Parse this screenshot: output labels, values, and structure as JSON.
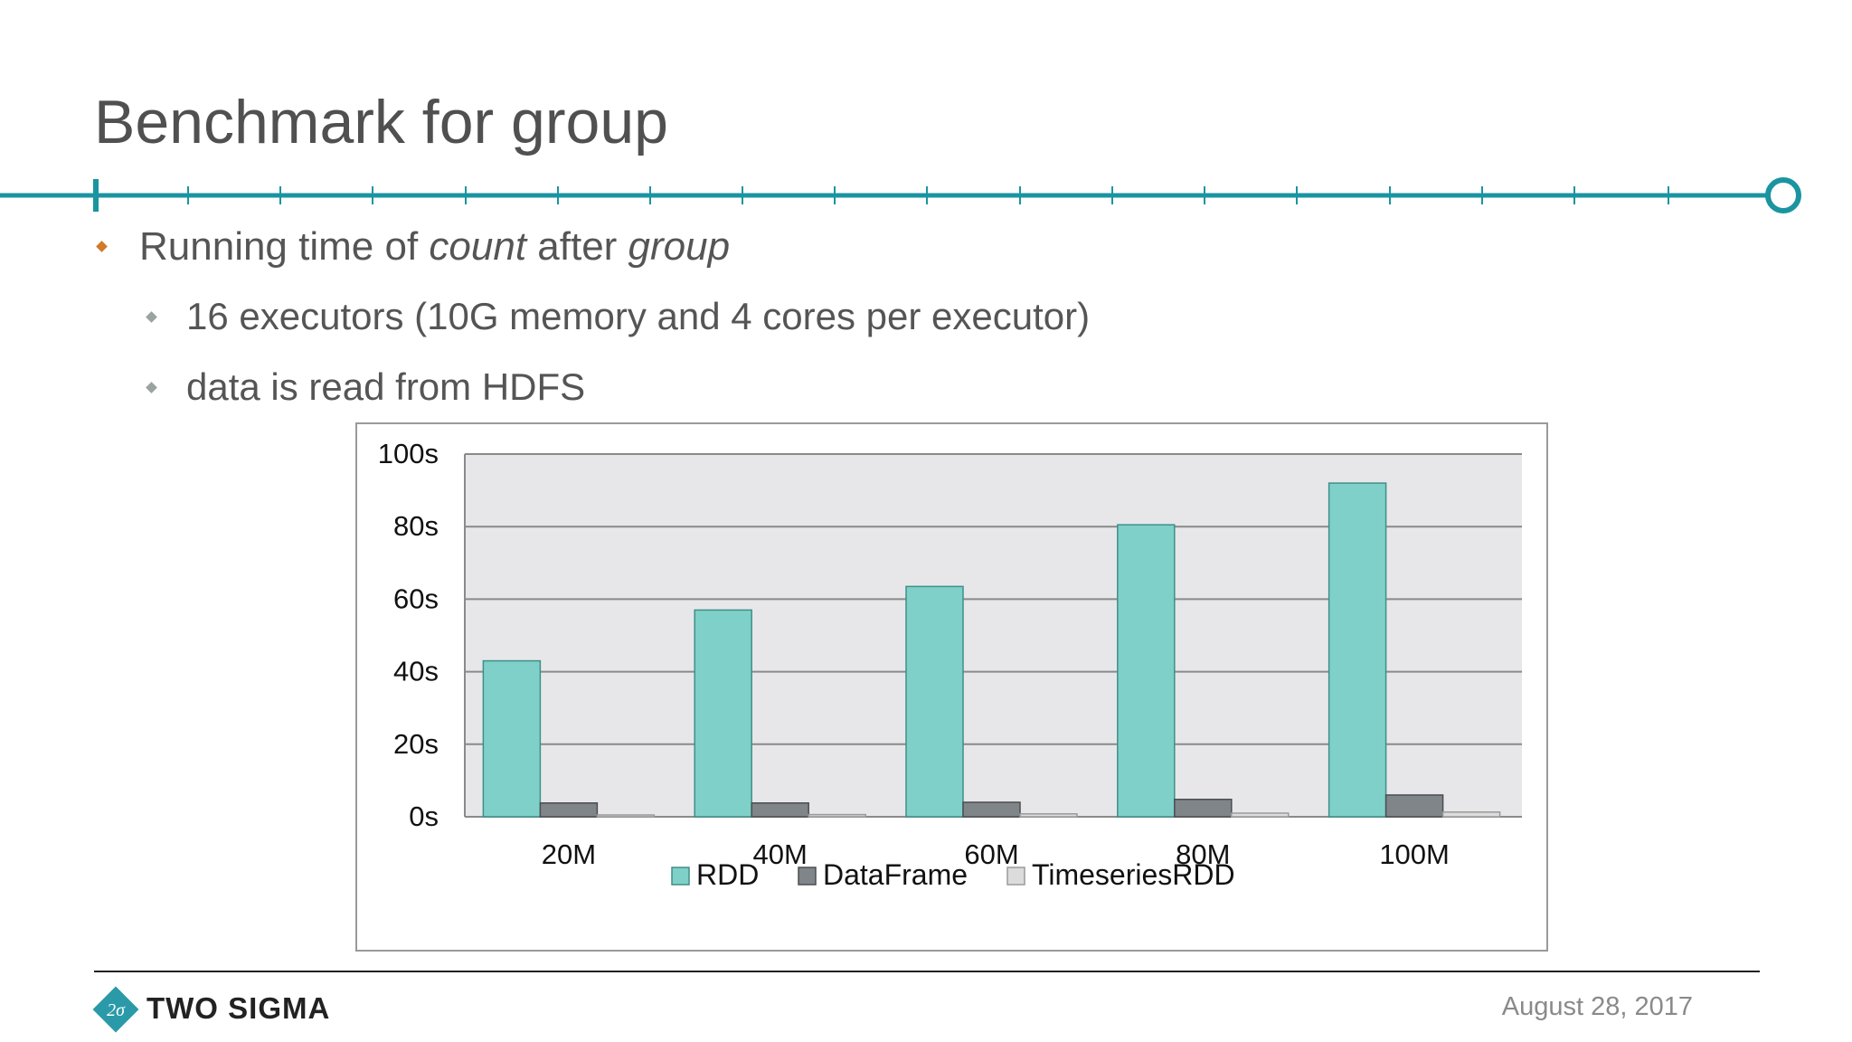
{
  "slide": {
    "title": "Benchmark for group",
    "bullets": [
      {
        "level": 1,
        "parts": [
          {
            "text": "Running time of ",
            "italic": false
          },
          {
            "text": "count",
            "italic": true
          },
          {
            "text": " after ",
            "italic": false
          },
          {
            "text": "group",
            "italic": true
          }
        ]
      },
      {
        "level": 2,
        "parts": [
          {
            "text": "16 executors (10G memory and 4 cores per executor)",
            "italic": false
          }
        ]
      },
      {
        "level": 2,
        "parts": [
          {
            "text": "data is read from HDFS",
            "italic": false
          }
        ]
      }
    ]
  },
  "colors": {
    "accent_teal": "#1a94a0",
    "bullet_orange": "#d07a2a",
    "bullet_gray": "#9aa2a2",
    "plot_bg": "#e7e7ea",
    "rdd": "#7fd0c8",
    "dataframe": "#808589",
    "timeseriesrdd": "#dcdcdc"
  },
  "footer": {
    "brand": "TWO SIGMA",
    "logo_symbol": "2σ",
    "date": "August 28, 2017"
  },
  "chart_data": {
    "type": "bar",
    "title": "",
    "xlabel": "",
    "ylabel": "",
    "categories": [
      "20M",
      "40M",
      "60M",
      "80M",
      "100M"
    ],
    "series": [
      {
        "name": "RDD",
        "values": [
          43,
          57,
          63.5,
          80.5,
          92
        ]
      },
      {
        "name": "DataFrame",
        "values": [
          3.8,
          3.8,
          4,
          4.8,
          6
        ]
      },
      {
        "name": "TimeseriesRDD",
        "values": [
          0.5,
          0.6,
          0.8,
          1,
          1.3
        ]
      }
    ],
    "yticks": [
      "0s",
      "20s",
      "40s",
      "60s",
      "80s",
      "100s"
    ],
    "ylim": [
      0,
      100
    ],
    "grid": true,
    "legend": "bottom"
  }
}
